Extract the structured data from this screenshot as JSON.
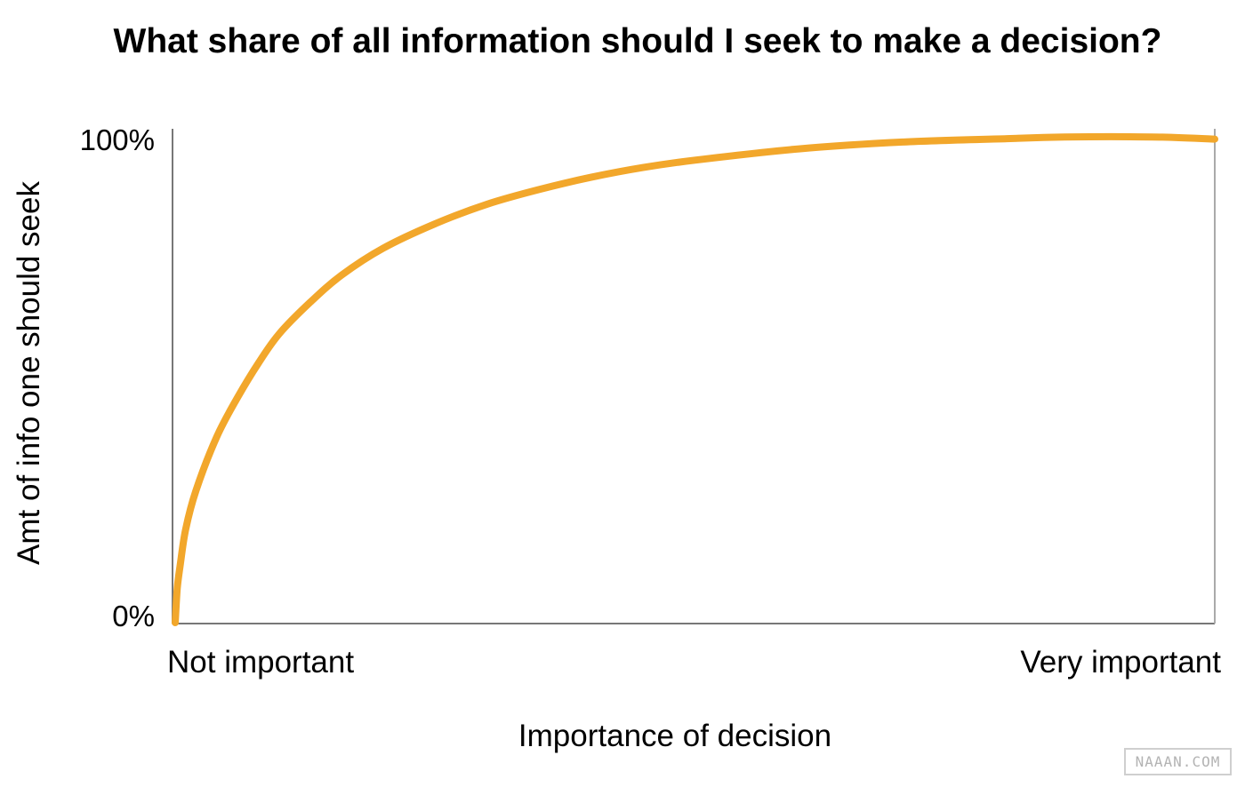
{
  "chart_data": {
    "type": "line",
    "title": "What share of all information should I seek to make a decision?",
    "xlabel": "Importance of decision",
    "ylabel": "Amt of info one should seek",
    "x_tick_labels": [
      "Not important",
      "Very important"
    ],
    "y_tick_labels": [
      "0%",
      "100%"
    ],
    "xlim": [
      0,
      1
    ],
    "ylim": [
      0,
      100
    ],
    "grid": false,
    "series": [
      {
        "color": "#F2A72B",
        "x": [
          0,
          0.002,
          0.005,
          0.01,
          0.02,
          0.04,
          0.06,
          0.08,
          0.1,
          0.13,
          0.16,
          0.2,
          0.25,
          0.3,
          0.35,
          0.4,
          0.45,
          0.5,
          0.6,
          0.7,
          0.8,
          0.85,
          0.9,
          0.95,
          1.0
        ],
        "values": [
          0,
          7,
          12,
          19,
          27,
          38,
          46,
          53,
          59,
          65.5,
          71,
          76.5,
          81.5,
          85.5,
          88.5,
          91,
          93,
          94.5,
          96.8,
          98.2,
          98.9,
          99.2,
          99.3,
          99.2,
          98.8
        ]
      }
    ]
  },
  "watermark": {
    "text": "NAAAN.COM"
  }
}
